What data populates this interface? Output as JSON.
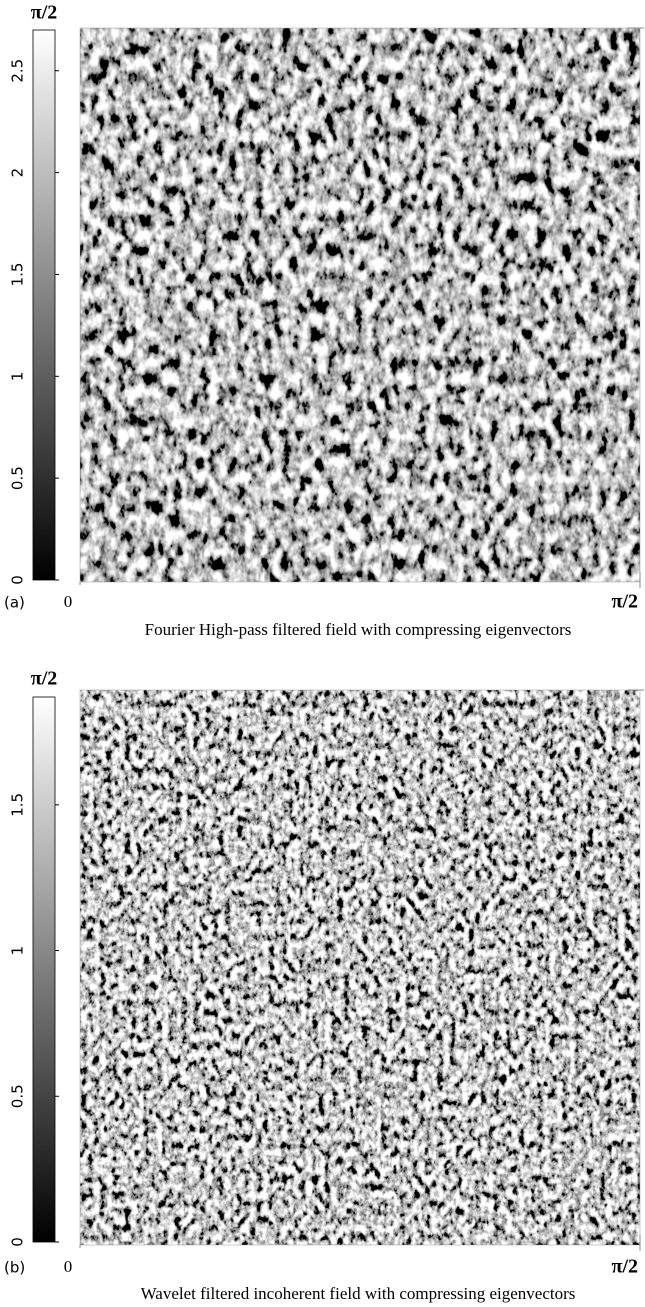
{
  "chart_data": [
    {
      "type": "image",
      "panel_label": "(a)",
      "caption": "Fourier High-pass filtered field with compressing eigenvectors",
      "colorbar": {
        "top_label": "π/2",
        "ylim": [
          0,
          2.7
        ],
        "yticks": [
          0,
          0.5,
          1,
          1.5,
          2,
          2.5
        ]
      },
      "xlim": [
        0,
        1.5708
      ],
      "xticks": [
        0,
        {
          "value": 1.5708,
          "label": "π/2"
        }
      ]
    },
    {
      "type": "image",
      "panel_label": "(b)",
      "caption": "Wavelet filtered incoherent field with compressing eigenvectors",
      "colorbar": {
        "top_label": "π/2",
        "ylim": [
          0,
          1.87
        ],
        "yticks": [
          0,
          0.5,
          1,
          1.5
        ]
      },
      "xlim": [
        0,
        1.5708
      ],
      "xticks": [
        0,
        {
          "value": 1.5708,
          "label": "π/2"
        }
      ]
    }
  ]
}
